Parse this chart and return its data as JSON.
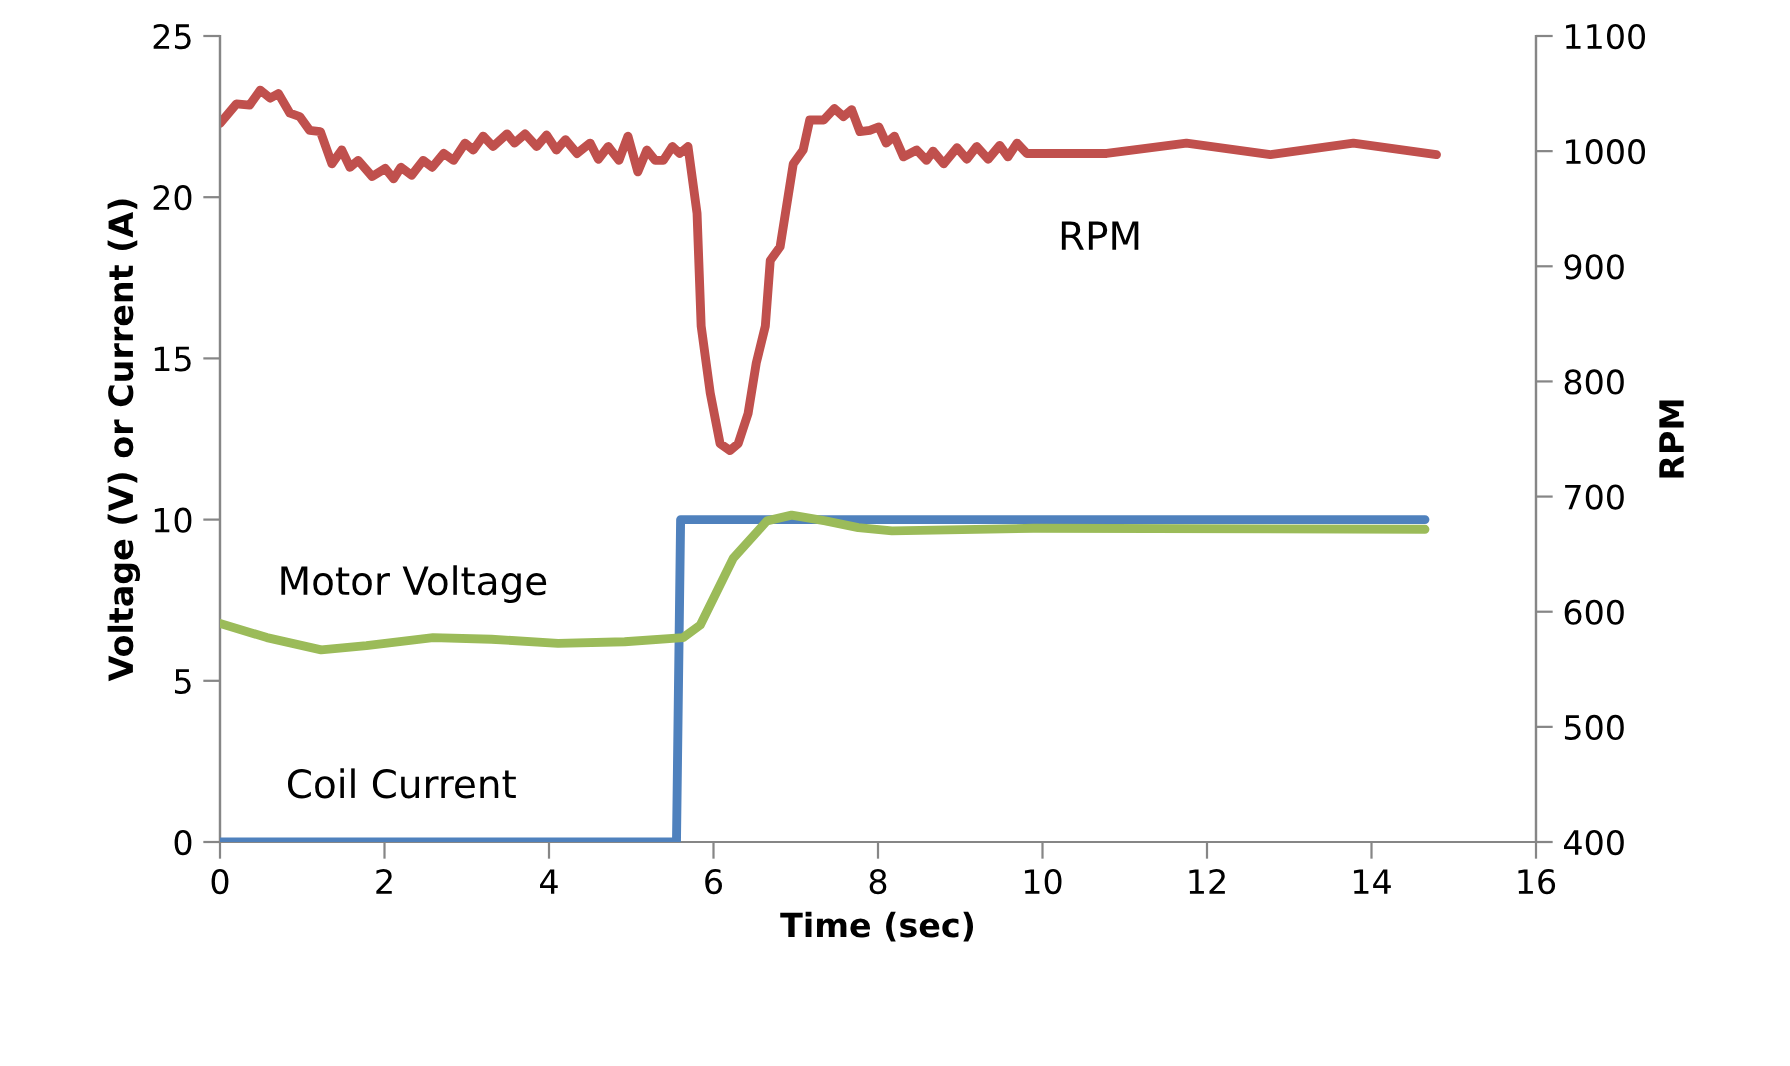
{
  "chart_data": {
    "type": "line",
    "xlabel": "Time (sec)",
    "ylabel": "Voltage (V) or Current (A)",
    "y2label": "RPM",
    "xlim": [
      0,
      16
    ],
    "xticks": [
      0,
      2,
      4,
      6,
      8,
      10,
      12,
      14,
      16
    ],
    "ylim": [
      0,
      25
    ],
    "yticks": [
      0,
      5,
      10,
      15,
      20,
      25
    ],
    "y2lim": [
      400,
      1100
    ],
    "y2ticks": [
      400,
      500,
      600,
      700,
      800,
      900,
      1000,
      1100
    ],
    "grid": false,
    "legend": false,
    "marker": "none",
    "line_style": "solid",
    "series": [
      {
        "name": "RPM",
        "axis": "y2",
        "color": "#c0504d",
        "x": [
          0,
          0.2,
          0.36,
          0.49,
          0.61,
          0.71,
          0.85,
          0.97,
          1.09,
          1.22,
          1.36,
          1.48,
          1.58,
          1.68,
          1.85,
          2.01,
          2.11,
          2.2,
          2.33,
          2.47,
          2.58,
          2.72,
          2.84,
          2.98,
          3.08,
          3.2,
          3.32,
          3.49,
          3.58,
          3.71,
          3.85,
          3.97,
          4.09,
          4.2,
          4.34,
          4.5,
          4.6,
          4.72,
          4.85,
          4.96,
          5.08,
          5.19,
          5.29,
          5.39,
          5.5,
          5.59,
          5.69,
          5.8,
          5.85,
          5.96,
          6.08,
          6.2,
          6.3,
          6.42,
          6.52,
          6.63,
          6.69,
          6.81,
          6.97,
          7.09,
          7.17,
          7.34,
          7.47,
          7.58,
          7.68,
          7.78,
          7.9,
          8.01,
          8.1,
          8.2,
          8.31,
          8.47,
          8.59,
          8.67,
          8.8,
          8.96,
          9.08,
          9.2,
          9.34,
          9.48,
          9.58,
          9.69,
          9.81,
          10.78,
          11.75,
          12.77,
          13.78,
          14.79
        ],
        "values": [
          1024,
          1041,
          1040,
          1053,
          1046,
          1050,
          1033,
          1030,
          1018,
          1017,
          989,
          1001,
          986,
          992,
          978,
          985,
          976,
          986,
          979,
          992,
          986,
          998,
          992,
          1007,
          1001,
          1013,
          1004,
          1015,
          1007,
          1015,
          1004,
          1014,
          1001,
          1010,
          998,
          1007,
          993,
          1004,
          992,
          1013,
          982,
          1001,
          992,
          992,
          1004,
          998,
          1004,
          946,
          848,
          790,
          746,
          740,
          746,
          772,
          816,
          848,
          905,
          917,
          989,
          1001,
          1027,
          1027,
          1037,
          1030,
          1036,
          1017,
          1018,
          1021,
          1007,
          1013,
          995,
          1001,
          992,
          1000,
          989,
          1003,
          993,
          1004,
          993,
          1005,
          995,
          1007,
          998,
          998,
          1007,
          997,
          1007,
          997
        ]
      },
      {
        "name": "Motor Voltage",
        "color": "#9bbb59",
        "x": [
          0,
          0.57,
          1.23,
          1.78,
          2.59,
          3.3,
          4.11,
          4.92,
          5.63,
          5.84,
          6.24,
          6.65,
          6.95,
          7.36,
          7.76,
          8.17,
          9.89,
          14.65
        ],
        "values": [
          6.78,
          6.34,
          5.96,
          6.09,
          6.34,
          6.29,
          6.16,
          6.21,
          6.34,
          6.73,
          8.8,
          9.96,
          10.14,
          9.96,
          9.75,
          9.65,
          9.73,
          9.7
        ]
      },
      {
        "name": "Coil Current",
        "color": "#4f81bd",
        "x": [
          0,
          5.55,
          5.6,
          14.65
        ],
        "values": [
          0,
          0,
          10,
          10
        ]
      }
    ]
  }
}
